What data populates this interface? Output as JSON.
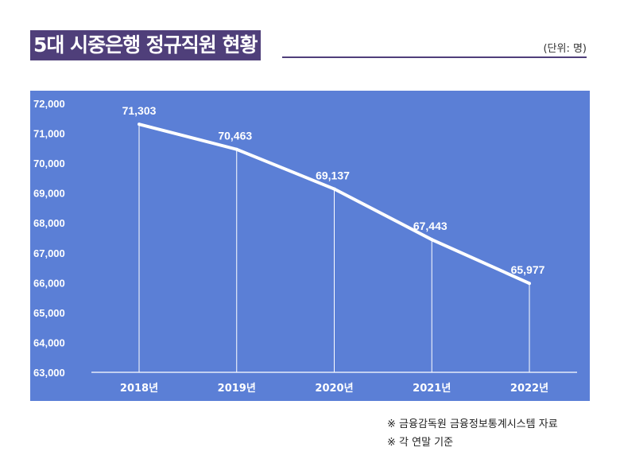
{
  "header": {
    "title": "5대 시중은행 정규직원 현황",
    "unit": "(단위: 명)"
  },
  "chart_data": {
    "type": "line",
    "categories": [
      "2018년",
      "2019년",
      "2020년",
      "2021년",
      "2022년"
    ],
    "values": [
      71303,
      70463,
      69137,
      67443,
      65977
    ],
    "data_labels": [
      "71,303",
      "70,463",
      "69,137",
      "67,443",
      "65,977"
    ],
    "ylim": [
      63000,
      72000
    ],
    "yticks": [
      "63,000",
      "64,000",
      "65,000",
      "66,000",
      "67,000",
      "68,000",
      "69,000",
      "70,000",
      "71,000",
      "72,000"
    ],
    "grid": false,
    "colors": {
      "background": "#5b7fd6",
      "line": "#ffffff"
    }
  },
  "footer": {
    "source": "※ 금융감독원 금융정보통계시스템 자료",
    "note": "※ 각 연말 기준"
  }
}
